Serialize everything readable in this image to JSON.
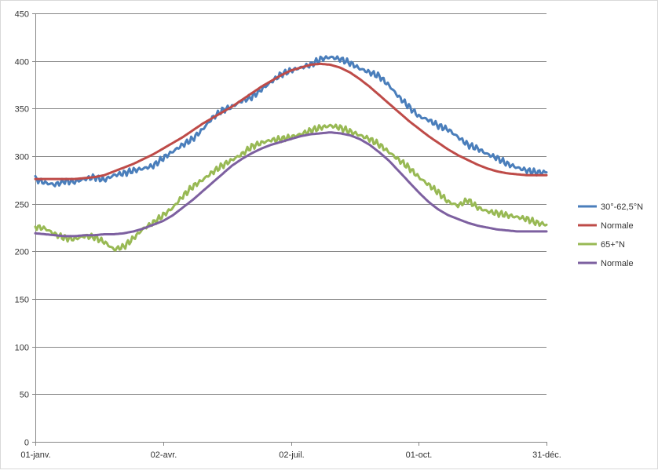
{
  "chart_data": {
    "type": "line",
    "title": "",
    "xlabel": "",
    "ylabel": "",
    "ylim": [
      0,
      450
    ],
    "y_ticks": [
      "0",
      "50",
      "100",
      "150",
      "200",
      "250",
      "300",
      "350",
      "400",
      "450"
    ],
    "xlim": [
      1,
      365
    ],
    "x_ticks": [
      {
        "label": "01-janv.",
        "day": 1
      },
      {
        "label": "02-avr.",
        "day": 92
      },
      {
        "label": "02-juil.",
        "day": 183
      },
      {
        "label": "01-oct.",
        "day": 274
      },
      {
        "label": "31-déc.",
        "day": 365
      }
    ],
    "grid": "horizontal",
    "legend_position": "right",
    "x": [
      1,
      8,
      15,
      22,
      29,
      36,
      43,
      50,
      57,
      64,
      71,
      78,
      85,
      92,
      99,
      106,
      113,
      120,
      127,
      134,
      141,
      148,
      155,
      162,
      169,
      176,
      183,
      190,
      197,
      204,
      211,
      218,
      225,
      232,
      239,
      246,
      253,
      260,
      267,
      274,
      281,
      288,
      295,
      302,
      309,
      316,
      323,
      330,
      337,
      344,
      351,
      358,
      365
    ],
    "series": [
      {
        "name": "30°-62,5°N",
        "color": "#4a7ebb",
        "values": [
          276,
          272,
          270,
          274,
          273,
          276,
          278,
          275,
          280,
          282,
          285,
          287,
          290,
          298,
          305,
          312,
          318,
          328,
          340,
          348,
          352,
          358,
          362,
          370,
          378,
          386,
          390,
          393,
          396,
          402,
          404,
          402,
          398,
          392,
          388,
          384,
          374,
          362,
          352,
          342,
          338,
          332,
          328,
          320,
          312,
          308,
          302,
          298,
          292,
          288,
          285,
          283,
          283
        ]
      },
      {
        "name": "Normale",
        "color": "#be4b48",
        "values": [
          276,
          276,
          276,
          276,
          276,
          277,
          278,
          280,
          284,
          288,
          292,
          297,
          302,
          308,
          314,
          320,
          327,
          334,
          340,
          346,
          352,
          359,
          366,
          373,
          379,
          385,
          390,
          393,
          396,
          397,
          396,
          393,
          388,
          381,
          373,
          364,
          355,
          346,
          337,
          329,
          321,
          314,
          307,
          301,
          296,
          291,
          287,
          284,
          282,
          281,
          280,
          280,
          280
        ]
      },
      {
        "name": "65+°N",
        "color": "#98b954",
        "values": [
          226,
          224,
          218,
          214,
          213,
          216,
          215,
          210,
          202,
          205,
          214,
          224,
          230,
          238,
          246,
          258,
          268,
          275,
          283,
          290,
          296,
          302,
          310,
          314,
          317,
          318,
          320,
          323,
          327,
          330,
          332,
          330,
          326,
          322,
          318,
          312,
          304,
          296,
          288,
          278,
          270,
          262,
          252,
          248,
          254,
          246,
          242,
          240,
          238,
          236,
          234,
          230,
          228
        ]
      },
      {
        "name": "Normale",
        "color": "#7d60a0",
        "values": [
          219,
          218,
          217,
          216,
          216,
          217,
          217,
          218,
          218,
          219,
          221,
          224,
          228,
          232,
          238,
          246,
          254,
          263,
          272,
          281,
          290,
          297,
          303,
          308,
          312,
          315,
          318,
          321,
          323,
          324,
          325,
          324,
          322,
          318,
          312,
          304,
          295,
          284,
          273,
          262,
          252,
          244,
          238,
          234,
          230,
          227,
          225,
          223,
          222,
          221,
          221,
          221,
          221
        ]
      }
    ]
  }
}
